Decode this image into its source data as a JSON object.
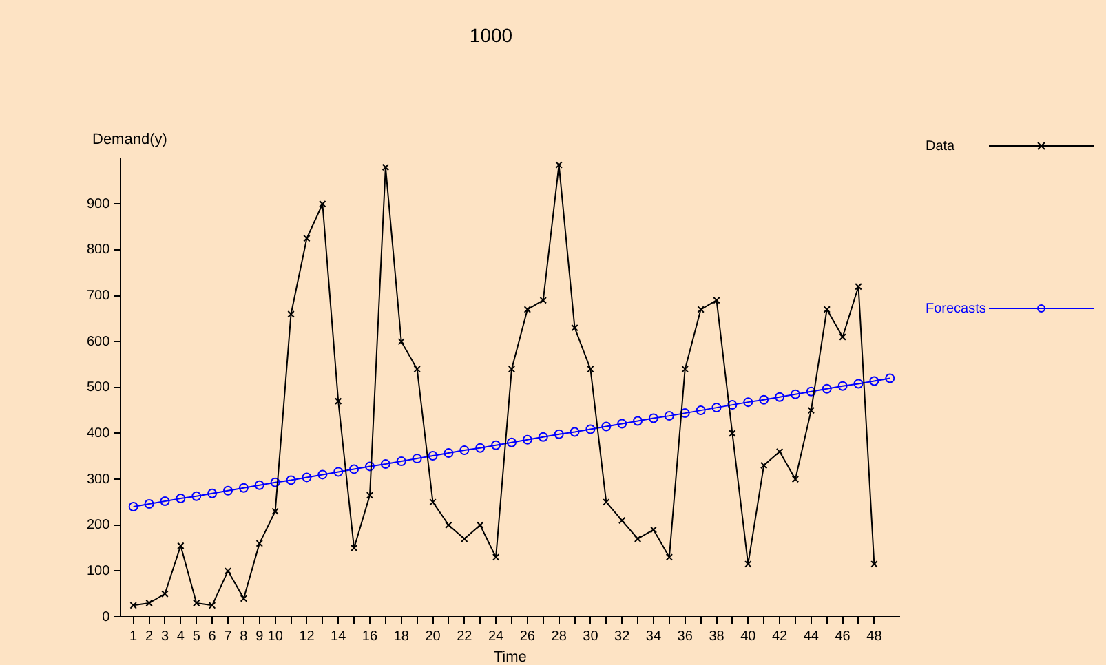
{
  "chart_data": {
    "type": "line",
    "title": "1000",
    "xlabel": "Time",
    "ylabel": "Demand(y)",
    "xlim": [
      0.2,
      49.6
    ],
    "ylim": [
      0,
      1000
    ],
    "xticks": [
      1,
      2,
      3,
      4,
      5,
      6,
      7,
      8,
      9,
      10,
      {
        "value": 11,
        "label": null
      },
      12,
      {
        "value": 13,
        "label": null
      },
      14,
      {
        "value": 15,
        "label": null
      },
      16,
      {
        "value": 17,
        "label": null
      },
      18,
      {
        "value": 19,
        "label": null
      },
      20,
      {
        "value": 21,
        "label": null
      },
      22,
      {
        "value": 23,
        "label": null
      },
      24,
      {
        "value": 25,
        "label": null
      },
      26,
      {
        "value": 27,
        "label": null
      },
      28,
      {
        "value": 29,
        "label": null
      },
      30,
      {
        "value": 31,
        "label": null
      },
      32,
      {
        "value": 33,
        "label": null
      },
      34,
      {
        "value": 35,
        "label": null
      },
      36,
      {
        "value": 37,
        "label": null
      },
      38,
      {
        "value": 39,
        "label": null
      },
      40,
      {
        "value": 41,
        "label": null
      },
      42,
      {
        "value": 43,
        "label": null
      },
      44,
      {
        "value": 45,
        "label": null
      },
      46,
      {
        "value": 47,
        "label": null
      },
      48
    ],
    "yticks": [
      0,
      100,
      200,
      300,
      400,
      500,
      600,
      700,
      800,
      900
    ],
    "grid": false,
    "legend": "right",
    "series": [
      {
        "name": "Data",
        "color": "#000000",
        "marker": "cross",
        "line_style": "solid",
        "x": [
          1,
          2,
          3,
          4,
          5,
          6,
          7,
          8,
          9,
          10,
          11,
          12,
          13,
          14,
          15,
          16,
          17,
          18,
          19,
          20,
          21,
          22,
          23,
          24,
          25,
          26,
          27,
          28,
          29,
          30,
          31,
          32,
          33,
          34,
          35,
          36,
          37,
          38,
          39,
          40,
          41,
          42,
          43,
          44,
          45,
          46,
          47,
          48
        ],
        "values": [
          25,
          30,
          50,
          155,
          30,
          25,
          100,
          40,
          160,
          230,
          660,
          825,
          900,
          470,
          150,
          265,
          980,
          600,
          540,
          250,
          200,
          170,
          200,
          130,
          540,
          670,
          690,
          985,
          630,
          540,
          250,
          210,
          170,
          190,
          130,
          540,
          670,
          690,
          400,
          115,
          330,
          360,
          300,
          450,
          670,
          610,
          720,
          115
        ]
      },
      {
        "name": "Forecasts",
        "color": "#0000ff",
        "marker": "circle",
        "line_style": "solid",
        "x": [
          1,
          2,
          3,
          4,
          5,
          6,
          7,
          8,
          9,
          10,
          11,
          12,
          13,
          14,
          15,
          16,
          17,
          18,
          19,
          20,
          21,
          22,
          23,
          24,
          25,
          26,
          27,
          28,
          29,
          30,
          31,
          32,
          33,
          34,
          35,
          36,
          37,
          38,
          39,
          40,
          41,
          42,
          43,
          44,
          45,
          46,
          47,
          48,
          49
        ],
        "values": [
          240,
          246,
          252,
          258,
          263,
          269,
          275,
          281,
          287,
          293,
          298,
          304,
          310,
          316,
          322,
          328,
          333,
          339,
          345,
          351,
          357,
          363,
          368,
          374,
          380,
          386,
          392,
          398,
          403,
          409,
          415,
          421,
          427,
          433,
          438,
          444,
          450,
          456,
          462,
          468,
          473,
          479,
          485,
          491,
          497,
          503,
          508,
          514,
          520
        ]
      }
    ]
  }
}
